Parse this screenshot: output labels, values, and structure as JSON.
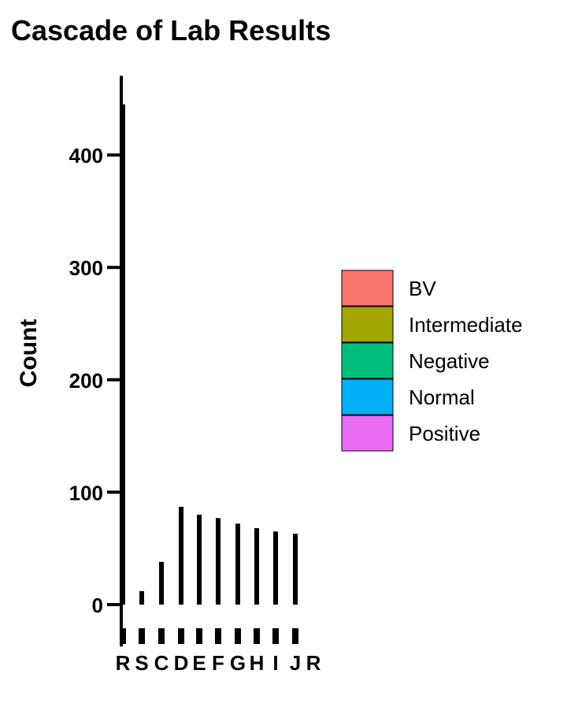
{
  "chart_data": {
    "type": "bar",
    "title": "Cascade of Lab Results",
    "xlabel": "",
    "ylabel": "Count",
    "ylim": [
      -15,
      470
    ],
    "y_ticks": [
      0,
      100,
      200,
      300,
      400
    ],
    "grid": false,
    "legend_placement": "right",
    "categories": [
      "R",
      "S",
      "C",
      "D",
      "E",
      "F",
      "G",
      "H",
      "I",
      "J",
      "R"
    ],
    "values": [
      445,
      12,
      38,
      87,
      80,
      77,
      72,
      68,
      65,
      63,
      0
    ],
    "legend": [
      {
        "name": "BV",
        "color": "#F8766D"
      },
      {
        "name": "Intermediate",
        "color": "#A3A500"
      },
      {
        "name": "Negative",
        "color": "#00BF7D"
      },
      {
        "name": "Normal",
        "color": "#00B0F6"
      },
      {
        "name": "Positive",
        "color": "#E76BF3"
      }
    ]
  }
}
